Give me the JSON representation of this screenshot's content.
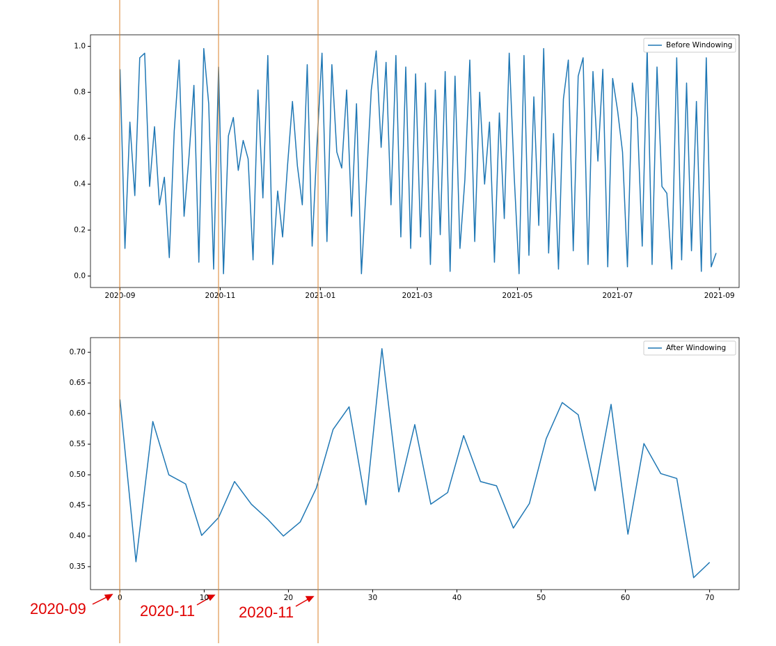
{
  "chart_data": [
    {
      "type": "line",
      "legend": "upper right",
      "series": [
        {
          "name": "Before Windowing",
          "color": "#1f77b4",
          "x": [
            "2020-09-01",
            "2020-09-04",
            "2020-09-07",
            "2020-09-10",
            "2020-09-13",
            "2020-09-16",
            "2020-09-19",
            "2020-09-22",
            "2020-09-25",
            "2020-09-28",
            "2020-10-01",
            "2020-10-04",
            "2020-10-07",
            "2020-10-10",
            "2020-10-13",
            "2020-10-16",
            "2020-10-19",
            "2020-10-22",
            "2020-10-25",
            "2020-10-28",
            "2020-10-31",
            "2020-11-03",
            "2020-11-06",
            "2020-11-09",
            "2020-11-12",
            "2020-11-15",
            "2020-11-18",
            "2020-11-21",
            "2020-11-24",
            "2020-11-27",
            "2020-11-30",
            "2020-12-03",
            "2020-12-06",
            "2020-12-09",
            "2020-12-12",
            "2020-12-15",
            "2020-12-18",
            "2020-12-21",
            "2020-12-24",
            "2020-12-27",
            "2020-12-30",
            "2021-01-02",
            "2021-01-05",
            "2021-01-08",
            "2021-01-11",
            "2021-01-14",
            "2021-01-17",
            "2021-01-20",
            "2021-01-23",
            "2021-01-26",
            "2021-01-29",
            "2021-02-01",
            "2021-02-04",
            "2021-02-07",
            "2021-02-10",
            "2021-02-13",
            "2021-02-16",
            "2021-02-19",
            "2021-02-22",
            "2021-02-25",
            "2021-02-28",
            "2021-03-03",
            "2021-03-06",
            "2021-03-09",
            "2021-03-12",
            "2021-03-15",
            "2021-03-18",
            "2021-03-21",
            "2021-03-24",
            "2021-03-27",
            "2021-03-30",
            "2021-04-02",
            "2021-04-05",
            "2021-04-08",
            "2021-04-11",
            "2021-04-14",
            "2021-04-17",
            "2021-04-20",
            "2021-04-23",
            "2021-04-26",
            "2021-04-29",
            "2021-05-02",
            "2021-05-05",
            "2021-05-08",
            "2021-05-11",
            "2021-05-14",
            "2021-05-17",
            "2021-05-20",
            "2021-05-23",
            "2021-05-26",
            "2021-05-29",
            "2021-06-01",
            "2021-06-04",
            "2021-06-07",
            "2021-06-10",
            "2021-06-13",
            "2021-06-16",
            "2021-06-19",
            "2021-06-22",
            "2021-06-25",
            "2021-06-28",
            "2021-07-01",
            "2021-07-04",
            "2021-07-07",
            "2021-07-10",
            "2021-07-13",
            "2021-07-16",
            "2021-07-19",
            "2021-07-22",
            "2021-07-25",
            "2021-07-28",
            "2021-07-31",
            "2021-08-03",
            "2021-08-06",
            "2021-08-09",
            "2021-08-12",
            "2021-08-15",
            "2021-08-18",
            "2021-08-21",
            "2021-08-24",
            "2021-08-27",
            "2021-08-30"
          ],
          "values": [
            0.9,
            0.12,
            0.67,
            0.35,
            0.95,
            0.97,
            0.39,
            0.65,
            0.31,
            0.43,
            0.08,
            0.63,
            0.94,
            0.26,
            0.52,
            0.83,
            0.06,
            0.99,
            0.75,
            0.03,
            0.91,
            0.01,
            0.61,
            0.69,
            0.46,
            0.59,
            0.51,
            0.07,
            0.81,
            0.34,
            0.96,
            0.05,
            0.37,
            0.17,
            0.48,
            0.76,
            0.48,
            0.31,
            0.92,
            0.13,
            0.58,
            0.97,
            0.15,
            0.92,
            0.54,
            0.47,
            0.81,
            0.26,
            0.75,
            0.01,
            0.4,
            0.81,
            0.98,
            0.56,
            0.93,
            0.31,
            0.96,
            0.17,
            0.91,
            0.12,
            0.88,
            0.17,
            0.84,
            0.05,
            0.81,
            0.18,
            0.89,
            0.02,
            0.87,
            0.12,
            0.42,
            0.94,
            0.15,
            0.8,
            0.4,
            0.67,
            0.06,
            0.71,
            0.25,
            0.97,
            0.44,
            0.01,
            0.96,
            0.09,
            0.78,
            0.22,
            0.99,
            0.1,
            0.62,
            0.03,
            0.77,
            0.94,
            0.11,
            0.87,
            0.95,
            0.05,
            0.89,
            0.5,
            0.9,
            0.04,
            0.86,
            0.72,
            0.54,
            0.04,
            0.84,
            0.69,
            0.13,
            0.99,
            0.05,
            0.91,
            0.39,
            0.36,
            0.03,
            0.95,
            0.07,
            0.84,
            0.11,
            0.76,
            0.02,
            0.95,
            0.04,
            0.1
          ]
        }
      ],
      "xlim": [
        "2020-08-14",
        "2021-09-13"
      ],
      "xticks": [
        {
          "value": "2020-09-01",
          "label": "2020-09"
        },
        {
          "value": "2020-11-01",
          "label": "2020-11"
        },
        {
          "value": "2021-01-01",
          "label": "2021-01"
        },
        {
          "value": "2021-03-01",
          "label": "2021-03"
        },
        {
          "value": "2021-05-01",
          "label": "2021-05"
        },
        {
          "value": "2021-07-01",
          "label": "2021-07"
        },
        {
          "value": "2021-09-01",
          "label": "2021-09"
        }
      ],
      "ylim": [
        -0.05,
        1.05
      ],
      "yticks": [
        {
          "value": 0,
          "label": "0.0"
        },
        0.2,
        0.4,
        0.6,
        0.8,
        {
          "value": 1,
          "label": "1.0"
        }
      ]
    },
    {
      "type": "line",
      "legend": "upper right",
      "series": [
        {
          "name": "After Windowing",
          "color": "#1f77b4",
          "x": [
            0,
            1.9,
            3.9,
            5.8,
            7.8,
            9.7,
            11.7,
            13.6,
            15.6,
            17.5,
            19.4,
            21.4,
            23.3,
            25.3,
            27.2,
            29.2,
            31.1,
            33.1,
            35,
            36.9,
            38.9,
            40.8,
            42.8,
            44.7,
            46.7,
            48.6,
            50.6,
            52.5,
            54.4,
            56.4,
            58.3,
            60.3,
            62.2,
            64.2,
            66.1,
            68.1,
            70
          ],
          "values": [
            0.623,
            0.358,
            0.587,
            0.5,
            0.485,
            0.401,
            0.43,
            0.489,
            0.452,
            0.428,
            0.4,
            0.423,
            0.478,
            0.574,
            0.611,
            0.451,
            0.706,
            0.472,
            0.582,
            0.452,
            0.471,
            0.564,
            0.489,
            0.482,
            0.413,
            0.453,
            0.559,
            0.618,
            0.598,
            0.474,
            0.615,
            0.403,
            0.551,
            0.502,
            0.494,
            0.332,
            0.357
          ]
        }
      ],
      "xlim": [
        -3.5,
        73.5
      ],
      "xticks": [
        0,
        10,
        20,
        30,
        40,
        50,
        60,
        70
      ],
      "ylim": [
        0.3125,
        0.724
      ],
      "yticks": [
        0.35,
        {
          "value": 0.4,
          "label": "0.40"
        },
        0.45,
        {
          "value": 0.5,
          "label": "0.50"
        },
        0.55,
        {
          "value": 0.6,
          "label": "0.60"
        },
        0.65,
        {
          "value": 0.7,
          "label": "0.70"
        }
      ]
    }
  ],
  "annotations": [
    "2020-09",
    "2020-11",
    "2020-11"
  ]
}
